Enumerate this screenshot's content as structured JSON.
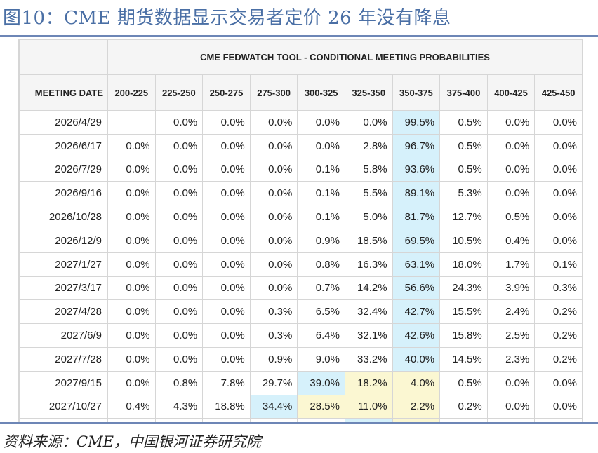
{
  "figure": {
    "title": "图10：CME 期货数据显示交易者定价 26 年没有降息",
    "source": "资料来源：CME，中国银河证券研究院"
  },
  "colors": {
    "title": "#4a6fa5",
    "rule": "#6d86b6",
    "highlight_blue": "#d6f1fb",
    "highlight_yellow": "#fbf7d2",
    "grid": "#d6d6d6"
  },
  "table": {
    "title": "CME FEDWATCH TOOL - CONDITIONAL MEETING PROBABILITIES",
    "date_header": "MEETING DATE",
    "columns": [
      "200-225",
      "225-250",
      "250-275",
      "275-300",
      "300-325",
      "325-350",
      "350-375",
      "375-400",
      "400-425",
      "425-450"
    ],
    "rows": [
      {
        "date": "2026/4/29",
        "values": [
          "",
          "0.0%",
          "0.0%",
          "0.0%",
          "0.0%",
          "0.0%",
          "99.5%",
          "0.5%",
          "0.0%",
          "0.0%"
        ],
        "highlight": {
          "blue": [
            6
          ],
          "yellow": []
        }
      },
      {
        "date": "2026/6/17",
        "values": [
          "0.0%",
          "0.0%",
          "0.0%",
          "0.0%",
          "0.0%",
          "2.8%",
          "96.7%",
          "0.5%",
          "0.0%",
          "0.0%"
        ],
        "highlight": {
          "blue": [
            6
          ],
          "yellow": []
        }
      },
      {
        "date": "2026/7/29",
        "values": [
          "0.0%",
          "0.0%",
          "0.0%",
          "0.0%",
          "0.1%",
          "5.8%",
          "93.6%",
          "0.5%",
          "0.0%",
          "0.0%"
        ],
        "highlight": {
          "blue": [
            6
          ],
          "yellow": []
        }
      },
      {
        "date": "2026/9/16",
        "values": [
          "0.0%",
          "0.0%",
          "0.0%",
          "0.0%",
          "0.1%",
          "5.5%",
          "89.1%",
          "5.3%",
          "0.0%",
          "0.0%"
        ],
        "highlight": {
          "blue": [
            6
          ],
          "yellow": []
        }
      },
      {
        "date": "2026/10/28",
        "values": [
          "0.0%",
          "0.0%",
          "0.0%",
          "0.0%",
          "0.1%",
          "5.0%",
          "81.7%",
          "12.7%",
          "0.5%",
          "0.0%"
        ],
        "highlight": {
          "blue": [
            6
          ],
          "yellow": []
        }
      },
      {
        "date": "2026/12/9",
        "values": [
          "0.0%",
          "0.0%",
          "0.0%",
          "0.0%",
          "0.9%",
          "18.5%",
          "69.5%",
          "10.5%",
          "0.4%",
          "0.0%"
        ],
        "highlight": {
          "blue": [
            6
          ],
          "yellow": []
        }
      },
      {
        "date": "2027/1/27",
        "values": [
          "0.0%",
          "0.0%",
          "0.0%",
          "0.0%",
          "0.8%",
          "16.3%",
          "63.1%",
          "18.0%",
          "1.7%",
          "0.1%"
        ],
        "highlight": {
          "blue": [
            6
          ],
          "yellow": []
        }
      },
      {
        "date": "2027/3/17",
        "values": [
          "0.0%",
          "0.0%",
          "0.0%",
          "0.0%",
          "0.7%",
          "14.2%",
          "56.6%",
          "24.3%",
          "3.9%",
          "0.3%"
        ],
        "highlight": {
          "blue": [
            6
          ],
          "yellow": []
        }
      },
      {
        "date": "2027/4/28",
        "values": [
          "0.0%",
          "0.0%",
          "0.0%",
          "0.3%",
          "6.5%",
          "32.4%",
          "42.7%",
          "15.5%",
          "2.4%",
          "0.2%"
        ],
        "highlight": {
          "blue": [
            6
          ],
          "yellow": []
        }
      },
      {
        "date": "2027/6/9",
        "values": [
          "0.0%",
          "0.0%",
          "0.0%",
          "0.3%",
          "6.4%",
          "32.1%",
          "42.6%",
          "15.8%",
          "2.5%",
          "0.2%"
        ],
        "highlight": {
          "blue": [
            6
          ],
          "yellow": []
        }
      },
      {
        "date": "2027/7/28",
        "values": [
          "0.0%",
          "0.0%",
          "0.0%",
          "0.9%",
          "9.0%",
          "33.2%",
          "40.0%",
          "14.5%",
          "2.3%",
          "0.2%"
        ],
        "highlight": {
          "blue": [
            6
          ],
          "yellow": []
        }
      },
      {
        "date": "2027/9/15",
        "values": [
          "0.0%",
          "0.8%",
          "7.8%",
          "29.7%",
          "39.0%",
          "18.2%",
          "4.0%",
          "0.5%",
          "0.0%",
          "0.0%"
        ],
        "highlight": {
          "blue": [
            4
          ],
          "yellow": [
            5,
            6
          ]
        }
      },
      {
        "date": "2027/10/27",
        "values": [
          "0.4%",
          "4.3%",
          "18.8%",
          "34.4%",
          "28.5%",
          "11.0%",
          "2.2%",
          "0.2%",
          "0.0%",
          "0.0%"
        ],
        "highlight": {
          "blue": [
            3
          ],
          "yellow": [
            4,
            5,
            6
          ]
        }
      },
      {
        "date": "",
        "values": [
          "",
          "",
          "",
          "",
          "",
          "",
          "",
          "",
          "",
          ""
        ],
        "highlight": {
          "blue": [
            5
          ],
          "yellow": [
            6
          ]
        }
      }
    ]
  }
}
